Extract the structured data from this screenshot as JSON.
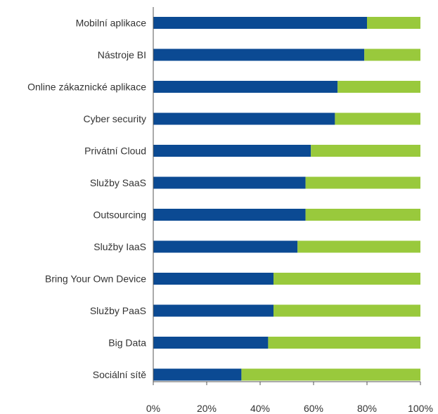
{
  "chart_data": {
    "type": "bar",
    "orientation": "horizontal",
    "stacked": true,
    "categories": [
      "Mobilní aplikace",
      "Nástroje BI",
      "Online zákaznické aplikace",
      "Cyber security",
      "Privátní Cloud",
      "Služby SaaS",
      "Outsourcing",
      "Služby IaaS",
      "Bring Your Own Device",
      "Služby PaaS",
      "Big Data",
      "Sociální sítě"
    ],
    "series": [
      {
        "color": "#0b4a93",
        "values": [
          80,
          79,
          69,
          68,
          59,
          57,
          57,
          54,
          45,
          45,
          43,
          33
        ]
      },
      {
        "color": "#99c93c",
        "values": [
          20,
          21,
          31,
          32,
          41,
          43,
          43,
          46,
          55,
          55,
          57,
          67
        ]
      }
    ],
    "xlim": [
      0,
      100
    ],
    "xticks": [
      "0%",
      "20%",
      "40%",
      "60%",
      "80%",
      "100%"
    ],
    "grid": false,
    "legend": "none"
  }
}
